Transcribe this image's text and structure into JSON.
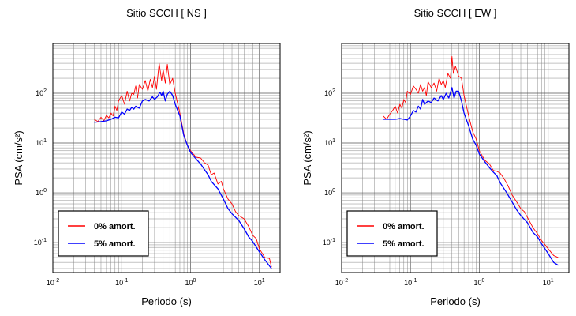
{
  "chart_data": [
    {
      "type": "line",
      "title": "Sitio SCCH [ NS ]",
      "xlabel": "Periodo (s)",
      "ylabel": "PSA (cm/s²)",
      "x_scale": "log",
      "y_scale": "log",
      "xlim": [
        0.01,
        20
      ],
      "ylim": [
        0.025,
        1000
      ],
      "xticks": [
        {
          "value": 0.01,
          "base": "10",
          "exp": "-2"
        },
        {
          "value": 0.1,
          "base": "10",
          "exp": "-1"
        },
        {
          "value": 1,
          "base": "10",
          "exp": "0"
        },
        {
          "value": 10,
          "base": "10",
          "exp": "1"
        }
      ],
      "yticks": [
        {
          "value": 0.1,
          "base": "10",
          "exp": "-1"
        },
        {
          "value": 1,
          "base": "10",
          "exp": "0"
        },
        {
          "value": 10,
          "base": "10",
          "exp": "1"
        },
        {
          "value": 100,
          "base": "10",
          "exp": "2"
        }
      ],
      "grid": true,
      "legend_position": "bottom-left",
      "series": [
        {
          "name": "0% amort.",
          "color": "#ff0000",
          "x": [
            0.04,
            0.045,
            0.05,
            0.055,
            0.06,
            0.065,
            0.07,
            0.075,
            0.08,
            0.085,
            0.09,
            0.1,
            0.11,
            0.12,
            0.13,
            0.14,
            0.15,
            0.16,
            0.17,
            0.18,
            0.2,
            0.22,
            0.24,
            0.26,
            0.28,
            0.3,
            0.32,
            0.35,
            0.38,
            0.4,
            0.43,
            0.46,
            0.5,
            0.55,
            0.6,
            0.7,
            0.8,
            0.9,
            1.0,
            1.2,
            1.4,
            1.6,
            1.8,
            2.0,
            2.2,
            2.5,
            2.8,
            3.0,
            3.5,
            4.0,
            4.5,
            5.0,
            6.0,
            7.0,
            8.0,
            9.0,
            10.0,
            12.0,
            14.0,
            15.0
          ],
          "y": [
            30,
            27,
            33,
            28,
            36,
            32,
            40,
            35,
            55,
            45,
            70,
            90,
            60,
            110,
            70,
            100,
            95,
            140,
            80,
            150,
            120,
            180,
            110,
            190,
            130,
            220,
            120,
            400,
            180,
            300,
            160,
            380,
            150,
            200,
            100,
            40,
            15,
            9,
            7,
            5.2,
            5,
            4,
            3.6,
            2.3,
            2.5,
            1.5,
            1.7,
            1.2,
            0.75,
            0.6,
            0.42,
            0.35,
            0.3,
            0.21,
            0.14,
            0.12,
            0.075,
            0.05,
            0.048,
            0.032
          ]
        },
        {
          "name": "5% amort.",
          "color": "#0000ff",
          "x": [
            0.04,
            0.05,
            0.06,
            0.07,
            0.08,
            0.09,
            0.1,
            0.11,
            0.12,
            0.13,
            0.14,
            0.15,
            0.16,
            0.18,
            0.2,
            0.22,
            0.25,
            0.28,
            0.3,
            0.33,
            0.36,
            0.38,
            0.4,
            0.43,
            0.46,
            0.5,
            0.55,
            0.6,
            0.7,
            0.8,
            0.9,
            1.0,
            1.2,
            1.4,
            1.6,
            1.8,
            2.0,
            2.5,
            3.0,
            3.5,
            4.0,
            5.0,
            6.0,
            7.0,
            8.0,
            10.0,
            12.0,
            15.0
          ],
          "y": [
            26,
            27,
            28,
            30,
            33,
            32,
            42,
            38,
            48,
            45,
            52,
            48,
            55,
            50,
            70,
            75,
            70,
            85,
            75,
            85,
            105,
            90,
            110,
            70,
            95,
            110,
            90,
            60,
            35,
            14,
            9,
            6.5,
            4.8,
            3.8,
            2.9,
            2.3,
            1.7,
            1.2,
            0.75,
            0.48,
            0.38,
            0.28,
            0.19,
            0.13,
            0.105,
            0.065,
            0.045,
            0.03
          ]
        }
      ]
    },
    {
      "type": "line",
      "title": "Sitio SCCH [ EW ]",
      "xlabel": "Periodo (s)",
      "ylabel": "PSA (cm/s²)",
      "x_scale": "log",
      "y_scale": "log",
      "xlim": [
        0.01,
        20
      ],
      "ylim": [
        0.025,
        1000
      ],
      "xticks": [
        {
          "value": 0.01,
          "base": "10",
          "exp": "-2"
        },
        {
          "value": 0.1,
          "base": "10",
          "exp": "-1"
        },
        {
          "value": 1,
          "base": "10",
          "exp": "0"
        },
        {
          "value": 10,
          "base": "10",
          "exp": "1"
        }
      ],
      "yticks": [
        {
          "value": 0.1,
          "base": "10",
          "exp": "-1"
        },
        {
          "value": 1,
          "base": "10",
          "exp": "0"
        },
        {
          "value": 10,
          "base": "10",
          "exp": "1"
        },
        {
          "value": 100,
          "base": "10",
          "exp": "2"
        }
      ],
      "grid": true,
      "legend_position": "bottom-left",
      "series": [
        {
          "name": "0% amort.",
          "color": "#ff0000",
          "x": [
            0.04,
            0.045,
            0.05,
            0.055,
            0.06,
            0.065,
            0.07,
            0.075,
            0.08,
            0.085,
            0.09,
            0.1,
            0.11,
            0.12,
            0.13,
            0.14,
            0.15,
            0.16,
            0.17,
            0.18,
            0.2,
            0.22,
            0.24,
            0.26,
            0.28,
            0.3,
            0.32,
            0.35,
            0.38,
            0.4,
            0.42,
            0.45,
            0.5,
            0.55,
            0.6,
            0.7,
            0.8,
            0.9,
            1.0,
            1.2,
            1.4,
            1.6,
            1.8,
            2.0,
            2.3,
            2.6,
            3.0,
            3.5,
            4.0,
            4.5,
            5.0,
            6.0,
            7.0,
            8.0,
            9.0,
            10.0,
            12.0,
            14.0
          ],
          "y": [
            35,
            30,
            38,
            45,
            55,
            40,
            60,
            50,
            75,
            65,
            110,
            95,
            140,
            120,
            100,
            150,
            110,
            130,
            90,
            170,
            130,
            160,
            110,
            200,
            150,
            180,
            130,
            250,
            200,
            550,
            250,
            350,
            220,
            200,
            90,
            35,
            17,
            12,
            7,
            4.5,
            3.8,
            2.8,
            2.7,
            2.5,
            1.9,
            1.4,
            0.9,
            0.65,
            0.48,
            0.42,
            0.32,
            0.2,
            0.15,
            0.11,
            0.09,
            0.075,
            0.055,
            0.05
          ]
        },
        {
          "name": "5% amort.",
          "color": "#0000ff",
          "x": [
            0.04,
            0.05,
            0.06,
            0.07,
            0.08,
            0.09,
            0.1,
            0.11,
            0.12,
            0.13,
            0.14,
            0.15,
            0.16,
            0.18,
            0.2,
            0.22,
            0.25,
            0.28,
            0.3,
            0.33,
            0.36,
            0.4,
            0.43,
            0.46,
            0.5,
            0.55,
            0.6,
            0.7,
            0.8,
            0.9,
            1.0,
            1.2,
            1.4,
            1.6,
            1.8,
            2.0,
            2.5,
            3.0,
            3.5,
            4.0,
            5.0,
            6.0,
            7.0,
            8.0,
            10.0,
            12.0,
            14.0
          ],
          "y": [
            30,
            30,
            30,
            31,
            30,
            29,
            35,
            45,
            42,
            55,
            48,
            75,
            60,
            70,
            65,
            80,
            70,
            90,
            75,
            100,
            80,
            130,
            80,
            110,
            110,
            70,
            40,
            22,
            12,
            9,
            6,
            4.2,
            3.2,
            2.6,
            2.2,
            1.6,
            1.0,
            0.65,
            0.45,
            0.35,
            0.25,
            0.16,
            0.13,
            0.095,
            0.06,
            0.04,
            0.035
          ]
        }
      ]
    }
  ]
}
